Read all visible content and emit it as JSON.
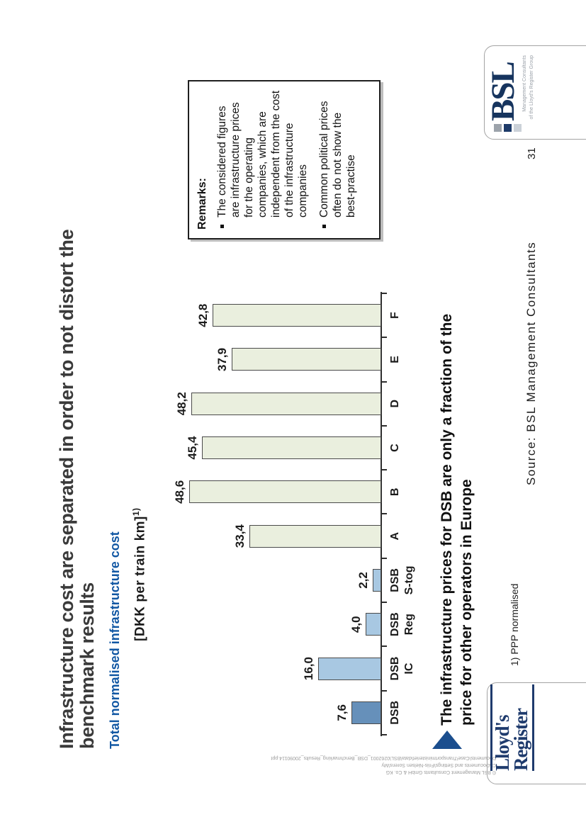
{
  "slide": {
    "title_line1": "Infrastructure cost are separated in order to not distort the",
    "title_line2": "benchmark results",
    "subtitle": "Total normalised infrastructure cost",
    "unit_label": "[DKK per train km]",
    "unit_superscript": "1)",
    "takeaway_line1": "The infrastructure prices for DSB are only a fraction of the",
    "takeaway_line2": "price for other operators in Europe",
    "footnote": "1) PPP normalised",
    "source": "Source: BSL Management Consultants",
    "page_number": "31",
    "fine_print_line1": "© BSL Management Consultants GmbH & Co. KG",
    "fine_print_line2": "C:\\Documents and Settings\\Friis-Nielsen Sorens\\My",
    "fine_print_line3": "Documents\\Case\\Transportministeriet\\data\\BSL\\0262001_DSB_Benchmarking_Results_20090114.ppt"
  },
  "remarks": {
    "header": "Remarks:",
    "bullets": [
      "The considered figures are infrastructure prices for the operating companies, which are independent from the cost of the infrastructure companies",
      "Common political prices often do not show the best-practise"
    ]
  },
  "chart_data": {
    "type": "bar",
    "title": "Total normalised infrastructure cost",
    "ylabel": "[DKK per train km] 1)",
    "xlabel": "",
    "ylim": [
      0,
      50
    ],
    "grid": false,
    "categories": [
      "DSB",
      "DSB IC",
      "DSB Reg",
      "DSB S-tog",
      "A",
      "B",
      "C",
      "D",
      "E",
      "F"
    ],
    "values": [
      7.6,
      16.0,
      4.0,
      2.2,
      33.4,
      48.6,
      45.4,
      48.2,
      37.9,
      42.8
    ],
    "value_labels": [
      "7,6",
      "16,0",
      "4,0",
      "2,2",
      "33,4",
      "48,6",
      "45,4",
      "48,2",
      "37,9",
      "42,8"
    ],
    "label_lines": [
      [
        "DSB"
      ],
      [
        "DSB",
        "IC"
      ],
      [
        "DSB",
        "Reg"
      ],
      [
        "DSB",
        "S-tog"
      ],
      [
        "A"
      ],
      [
        "B"
      ],
      [
        "C"
      ],
      [
        "D"
      ],
      [
        "E"
      ],
      [
        "F"
      ]
    ],
    "bar_colors": [
      "#6690ba",
      "#a8c8e2",
      "#a8c8e2",
      "#a8c8e2",
      "#eaefde",
      "#eaefde",
      "#eaefde",
      "#eaefde",
      "#eaefde",
      "#eaefde"
    ]
  },
  "logos": {
    "bsl_text": "BSL",
    "bsl_tagline_line1": "Management Consultants",
    "bsl_tagline_line2": "of the Lloyd's Register Group",
    "lloyds_line1": "Lloyd's",
    "lloyds_line2": "Register"
  },
  "colors": {
    "title_text": "#3a3a3a",
    "subtitle_blue": "#1157a3",
    "arrow_blue": "#1b4e8e",
    "bsl_navy": "#16345e",
    "lloyds_navy": "#1f3b6d",
    "bar_dsb": "#6690ba",
    "bar_dsb_sub": "#a8c8e2",
    "bar_europe": "#eaefde",
    "axis": "#2e2e2e"
  }
}
